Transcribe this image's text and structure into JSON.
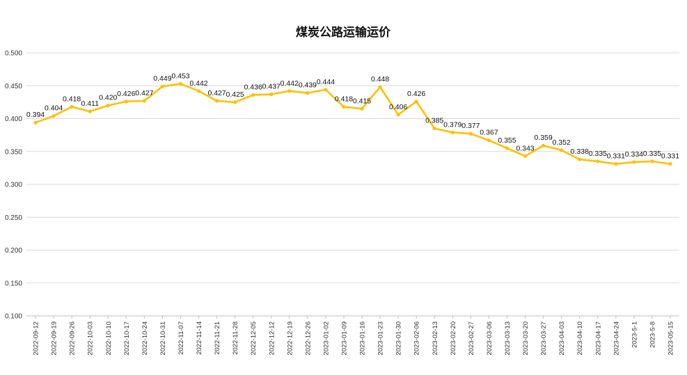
{
  "chart_data": {
    "type": "line",
    "title": "煤炭公路运输运价",
    "xlabel": "",
    "ylabel": "",
    "ylim": [
      0.1,
      0.5
    ],
    "yticks": [
      "0.100",
      "0.150",
      "0.200",
      "0.250",
      "0.300",
      "0.350",
      "0.400",
      "0.450",
      "0.500"
    ],
    "grid": true,
    "legend": "none",
    "line_color": "#FFC000",
    "categories": [
      "2022-09-12",
      "2022-09-19",
      "2022-09-26",
      "2022-10-03",
      "2022-10-10",
      "2022-10-17",
      "2022-10-24",
      "2022-10-31",
      "2022-11-07",
      "2022-11-14",
      "2022-11-21",
      "2022-11-28",
      "2022-12-05",
      "2022-12-12",
      "2022-12-19",
      "2022-12-26",
      "2023-01-02",
      "2023-01-09",
      "2023-01-16",
      "2023-01-23",
      "2023-01-30",
      "2023-02-06",
      "2023-02-13",
      "2023-02-20",
      "2023-02-27",
      "2023-03-06",
      "2023-03-13",
      "2023-03-20",
      "2023-03-27",
      "2023-04-03",
      "2023-04-10",
      "2023-04-17",
      "2023-04-24",
      "2023-5-1",
      "2023-5-8",
      "2023-05-15"
    ],
    "values": [
      0.394,
      0.404,
      0.418,
      0.411,
      0.42,
      0.426,
      0.427,
      0.449,
      0.453,
      0.442,
      0.427,
      0.425,
      0.436,
      0.437,
      0.442,
      0.439,
      0.444,
      0.418,
      0.415,
      0.448,
      0.406,
      0.426,
      0.385,
      0.379,
      0.377,
      0.367,
      0.355,
      0.343,
      0.359,
      0.352,
      0.338,
      0.335,
      0.331,
      0.334,
      0.335,
      0.331
    ],
    "data_labels": [
      "0.394",
      "0.404",
      "0.418",
      "0.411",
      "0.420",
      "0.426",
      "0.427",
      "0.449",
      "0.453",
      "0.442",
      "0.427",
      "0.425",
      "0.436",
      "0.437",
      "0.442",
      "0.439",
      "0.444",
      "0.418",
      "0.415",
      "0.448",
      "0.406",
      "0.426",
      "0.385",
      "0.379",
      "0.377",
      "0.367",
      "0.355",
      "0.343",
      "0.359",
      "0.352",
      "0.338",
      "0.335",
      "0.331",
      "0.334",
      "0.335",
      "0.331"
    ]
  }
}
